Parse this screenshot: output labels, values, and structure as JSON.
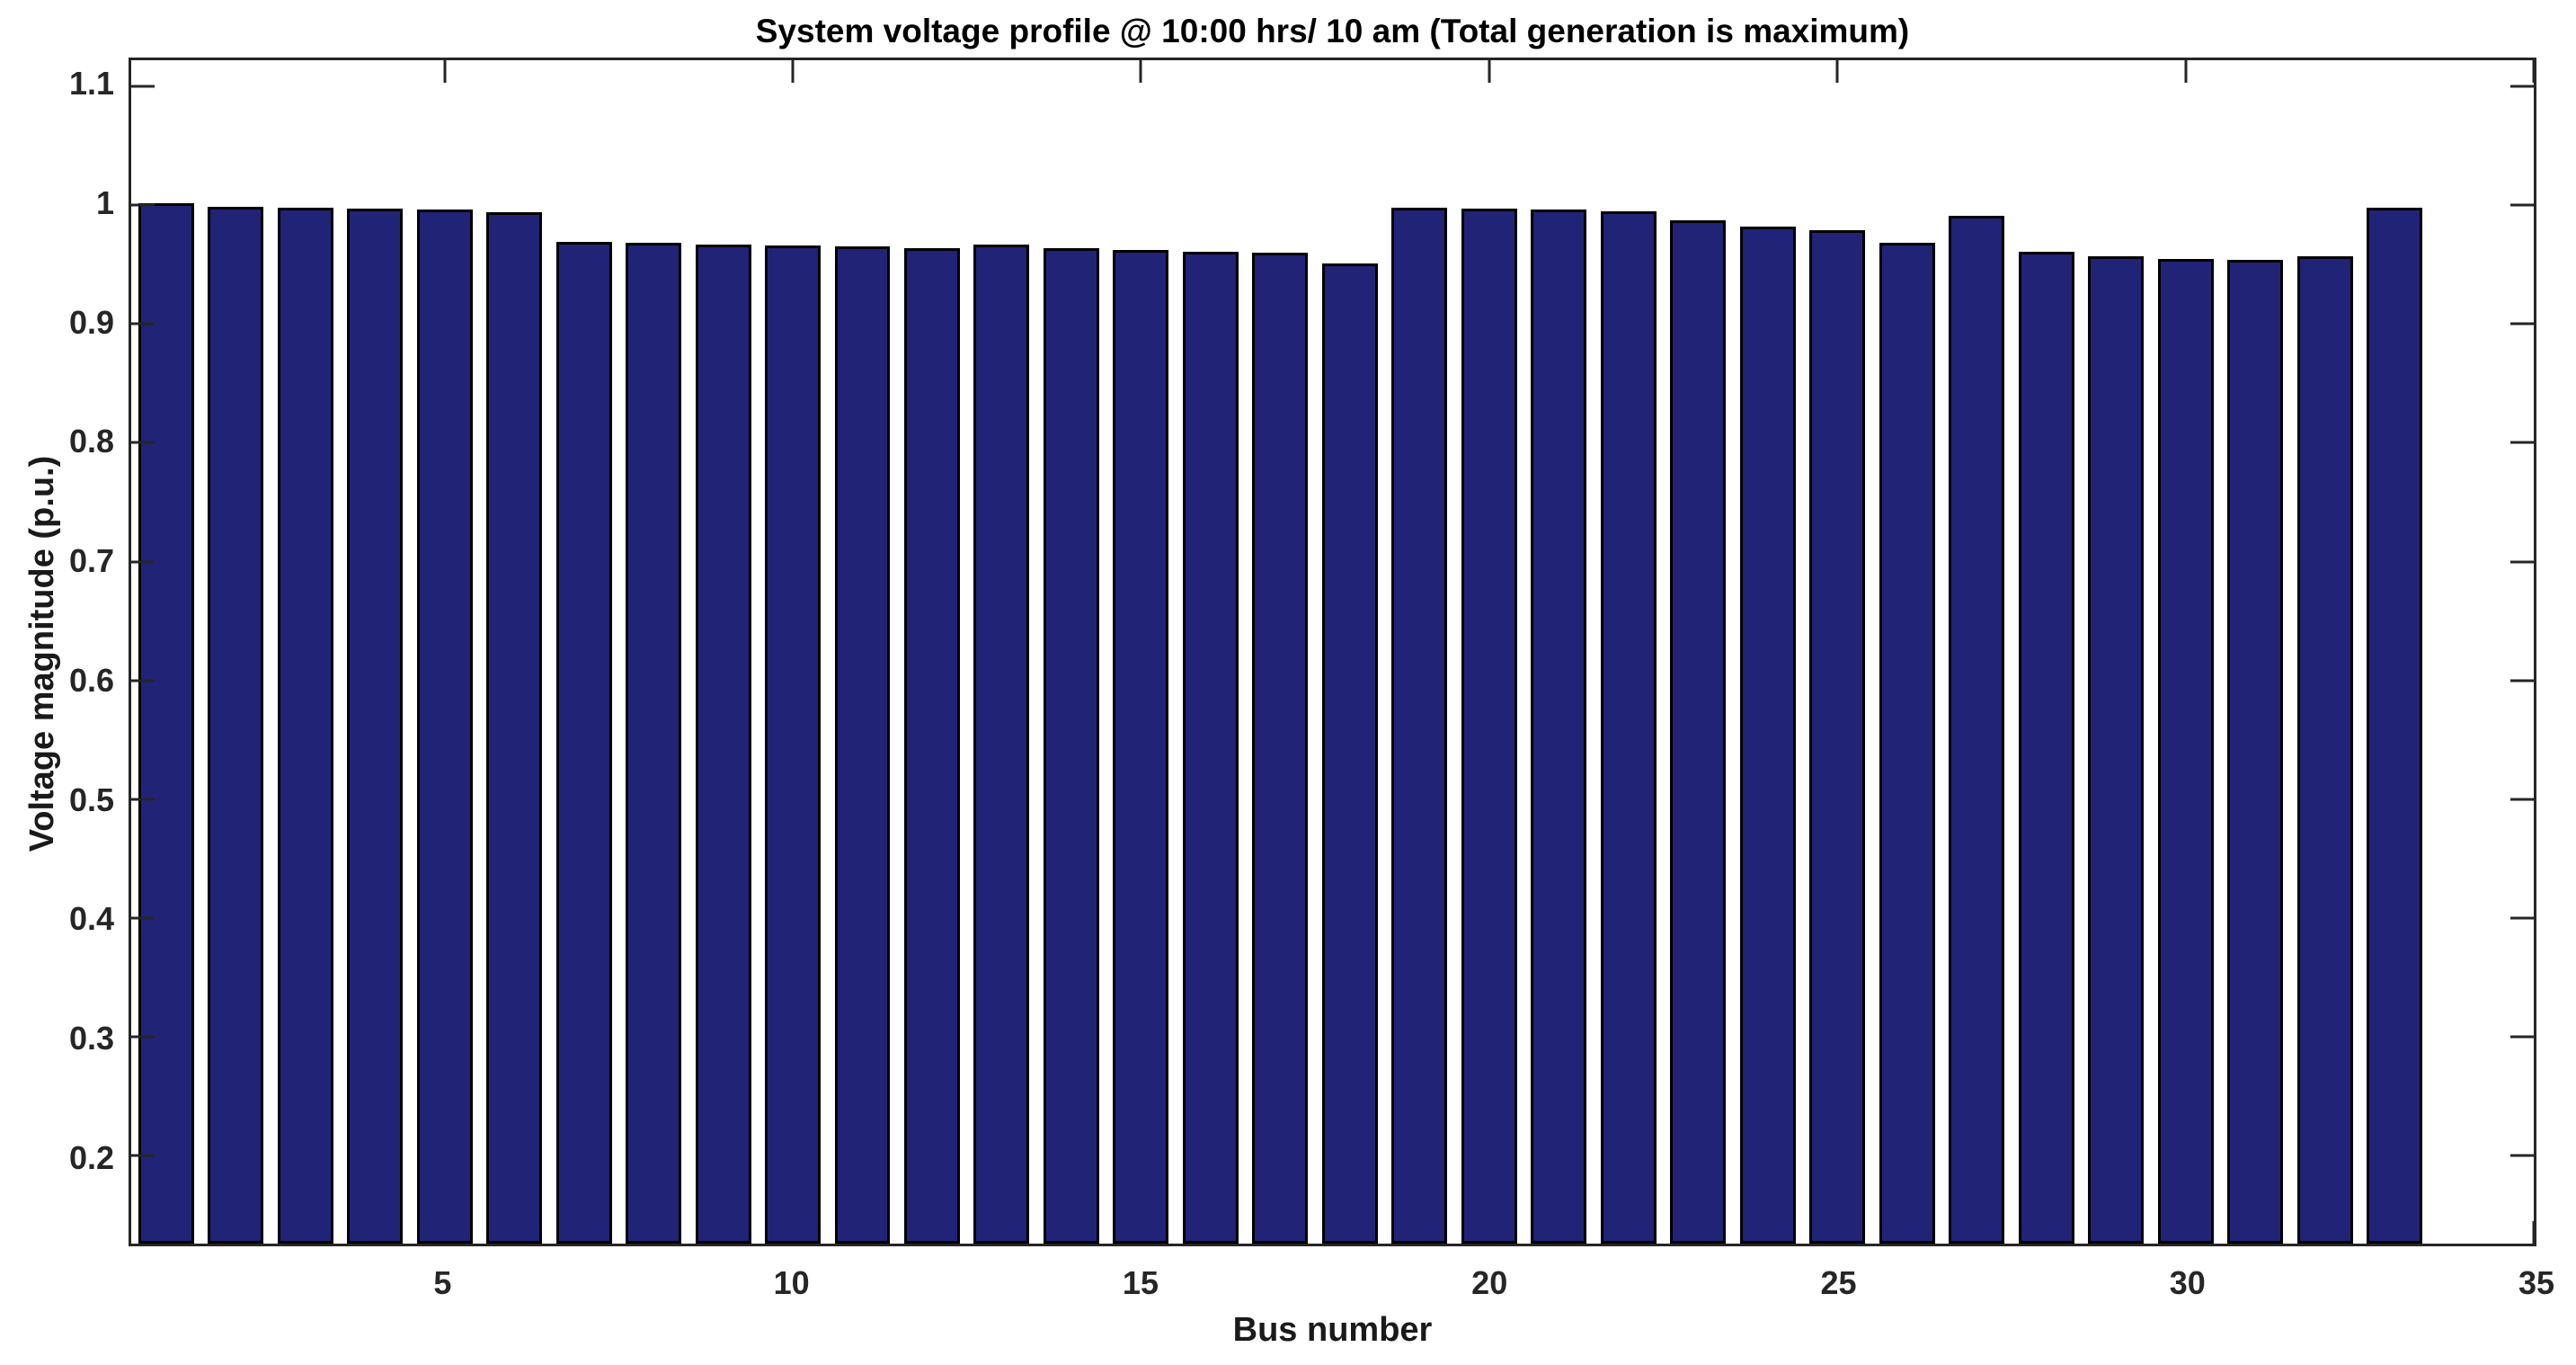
{
  "chart_data": {
    "type": "bar",
    "title": "System voltage profile @ 10:00 hrs/ 10 am (Total generation is maximum)",
    "xlabel": "Bus number",
    "ylabel": "Voltage magnitude (p.u.)",
    "x": [
      1,
      2,
      3,
      4,
      5,
      6,
      7,
      8,
      9,
      10,
      11,
      12,
      13,
      14,
      15,
      16,
      17,
      18,
      19,
      20,
      21,
      22,
      23,
      24,
      25,
      26,
      27,
      28,
      29,
      30,
      31,
      32,
      33
    ],
    "values": [
      1.002,
      0.999,
      0.998,
      0.997,
      0.996,
      0.994,
      0.969,
      0.968,
      0.967,
      0.966,
      0.965,
      0.964,
      0.967,
      0.964,
      0.962,
      0.961,
      0.96,
      0.951,
      0.998,
      0.997,
      0.996,
      0.995,
      0.987,
      0.982,
      0.979,
      0.968,
      0.991,
      0.961,
      0.957,
      0.955,
      0.954,
      0.957,
      0.998
    ],
    "xlim": [
      0.5,
      35
    ],
    "ylim": [
      0.126,
      1.122
    ],
    "xticks": [
      5,
      10,
      15,
      20,
      25,
      30,
      35
    ],
    "xtick_labels": [
      "5",
      "10",
      "15",
      "20",
      "25",
      "30",
      "35"
    ],
    "yticks": [
      0.2,
      0.3,
      0.4,
      0.5,
      0.6,
      0.7,
      0.8,
      0.9,
      1,
      1.1
    ],
    "ytick_labels": [
      "0.2",
      "0.3",
      "0.4",
      "0.5",
      "0.6",
      "0.7",
      "0.8",
      "0.9",
      "1",
      "1.1"
    ],
    "bar_width": 0.8,
    "grid": false,
    "legend": null,
    "colors": {
      "bar_fill": "#212377",
      "bar_edge": "#000000",
      "axis": "#262626",
      "tick_label": "#262626",
      "background": "#ffffff",
      "title": "#000000"
    }
  }
}
